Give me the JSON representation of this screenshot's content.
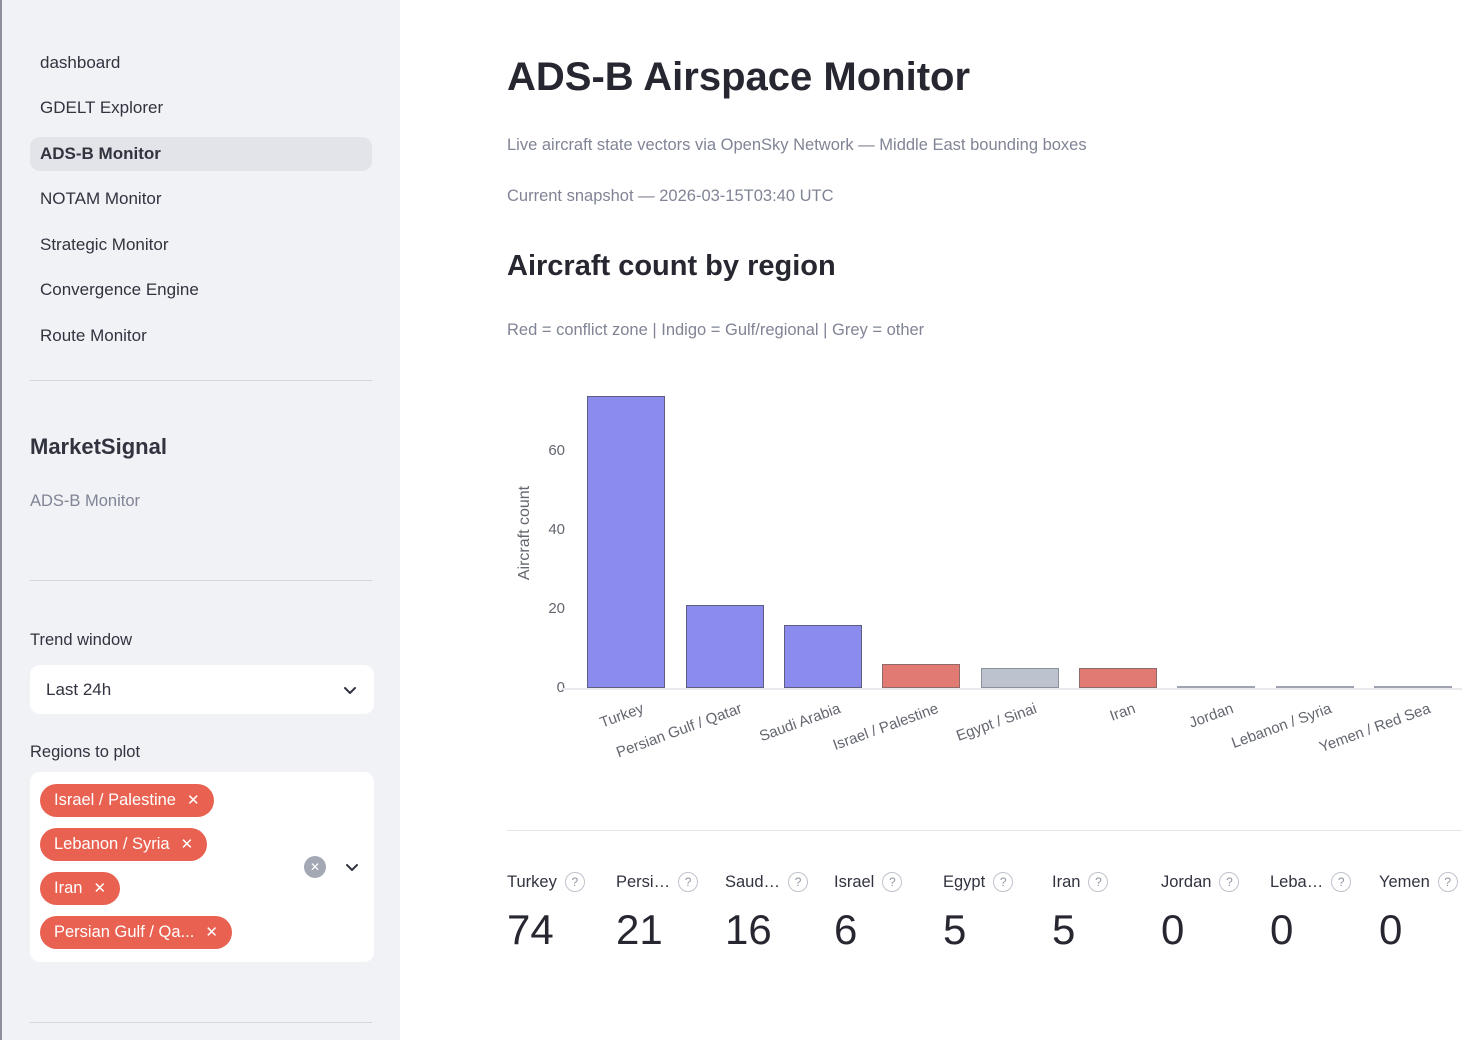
{
  "colors": {
    "accent_tag_red": "#e96150",
    "bar_indigo": "#8b8bee",
    "bar_indigo_border": "#5e5e80",
    "bar_red": "#e27a74",
    "bar_red_border": "#8f6a68",
    "bar_grey": "#bcc2ce",
    "bar_grey_border": "#8c909c",
    "bar_zero": "#9fa3b0",
    "sidebar_bg": "#f0f2f6",
    "text": "#31333f",
    "muted": "#808495"
  },
  "sidebar": {
    "nav": [
      {
        "label": "dashboard",
        "active": false
      },
      {
        "label": "GDELT Explorer",
        "active": false
      },
      {
        "label": "ADS-B Monitor",
        "active": true
      },
      {
        "label": "NOTAM Monitor",
        "active": false
      },
      {
        "label": "Strategic Monitor",
        "active": false
      },
      {
        "label": "Convergence Engine",
        "active": false
      },
      {
        "label": "Route Monitor",
        "active": false
      }
    ],
    "app_title": "MarketSignal",
    "app_caption": "ADS-B Monitor",
    "trend_window_label": "Trend window",
    "trend_window_value": "Last 24h",
    "regions_label": "Regions to plot",
    "region_tags": [
      "Israel / Palestine",
      "Lebanon / Syria",
      "Iran",
      "Persian Gulf / Qa..."
    ]
  },
  "main": {
    "title": "ADS-B Airspace Monitor",
    "subtitle": "Live aircraft state vectors via OpenSky Network — Middle East bounding boxes",
    "snapshot": "Current snapshot — 2026-03-15T03:40 UTC",
    "section_title": "Aircraft count by region",
    "legend_caption": "Red = conflict zone | Indigo = Gulf/regional | Grey = other"
  },
  "chart_data": {
    "type": "bar",
    "title": "Aircraft count by region",
    "xlabel": "",
    "ylabel": "Aircraft count",
    "categories": [
      "Turkey",
      "Persian Gulf / Qatar",
      "Saudi Arabia",
      "Israel / Palestine",
      "Egypt / Sinai",
      "Iran",
      "Jordan",
      "Lebanon / Syria",
      "Yemen / Red Sea"
    ],
    "values": [
      74,
      21,
      16,
      6,
      5,
      5,
      0,
      0,
      0
    ],
    "bar_color_classes": [
      "indigo",
      "indigo",
      "indigo",
      "red",
      "grey",
      "red",
      "grey",
      "red",
      "red"
    ],
    "legend_note": "Red = conflict zone | Indigo = Gulf/regional | Grey = other",
    "yticks": [
      0,
      20,
      40,
      60
    ],
    "ylim": [
      0,
      78
    ],
    "grid": false,
    "legend_position": "none"
  },
  "metrics": [
    {
      "label": "Turkey",
      "value": "74"
    },
    {
      "label": "Persi…",
      "value": "21"
    },
    {
      "label": "Saud…",
      "value": "16"
    },
    {
      "label": "Israel",
      "value": "6"
    },
    {
      "label": "Egypt",
      "value": "5"
    },
    {
      "label": "Iran",
      "value": "5"
    },
    {
      "label": "Jordan",
      "value": "0"
    },
    {
      "label": "Leba…",
      "value": "0"
    },
    {
      "label": "Yemen",
      "value": "0"
    }
  ]
}
